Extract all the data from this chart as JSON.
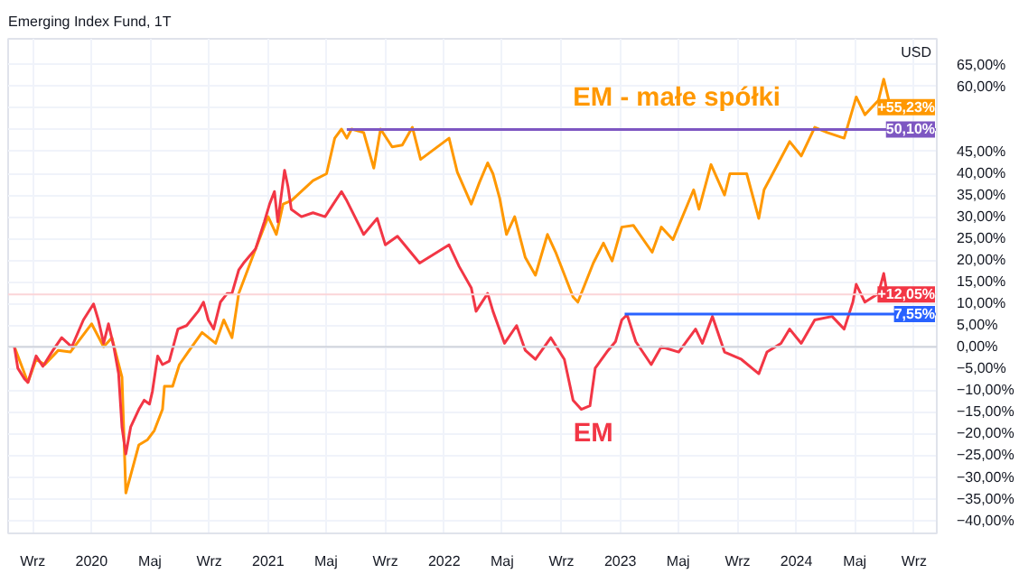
{
  "chart_data": {
    "type": "line",
    "title": "Emerging Index Fund, 1T",
    "ylabel": "USD",
    "xlim": [
      "2019-07-12",
      "2024-10-18"
    ],
    "ylim": [
      -43,
      71
    ],
    "xticks": [
      {
        "value": "2019-09-01",
        "label": "Wrz"
      },
      {
        "value": "2020-01-01",
        "label": "2020"
      },
      {
        "value": "2020-05-01",
        "label": "Maj"
      },
      {
        "value": "2020-09-01",
        "label": "Wrz"
      },
      {
        "value": "2021-01-01",
        "label": "2021"
      },
      {
        "value": "2021-05-01",
        "label": "Maj"
      },
      {
        "value": "2021-09-01",
        "label": "Wrz"
      },
      {
        "value": "2022-01-01",
        "label": "2022"
      },
      {
        "value": "2022-05-01",
        "label": "Maj"
      },
      {
        "value": "2022-09-01",
        "label": "Wrz"
      },
      {
        "value": "2023-01-01",
        "label": "2023"
      },
      {
        "value": "2023-05-01",
        "label": "Maj"
      },
      {
        "value": "2023-09-01",
        "label": "Wrz"
      },
      {
        "value": "2024-01-01",
        "label": "2024"
      },
      {
        "value": "2024-05-01",
        "label": "Maj"
      },
      {
        "value": "2024-09-01",
        "label": "Wrz"
      }
    ],
    "yticks": [
      {
        "value": -40,
        "label": "−40,00%"
      },
      {
        "value": -35,
        "label": "−35,00%"
      },
      {
        "value": -30,
        "label": "−30,00%"
      },
      {
        "value": -25,
        "label": "−25,00%"
      },
      {
        "value": -20,
        "label": "−20,00%"
      },
      {
        "value": -15,
        "label": "−15,00%"
      },
      {
        "value": -10,
        "label": "−10,00%"
      },
      {
        "value": -5,
        "label": "−5,00%"
      },
      {
        "value": 0,
        "label": "0,00%"
      },
      {
        "value": 5,
        "label": "5,00%"
      },
      {
        "value": 10,
        "label": "10,00%"
      },
      {
        "value": 15,
        "label": "15,00%"
      },
      {
        "value": 20,
        "label": "20,00%"
      },
      {
        "value": 25,
        "label": "25,00%"
      },
      {
        "value": 30,
        "label": "30,00%"
      },
      {
        "value": 35,
        "label": "35,00%"
      },
      {
        "value": 40,
        "label": "40,00%"
      },
      {
        "value": 45,
        "label": "45,00%"
      },
      {
        "value": 50,
        "label": null
      },
      {
        "value": 55,
        "label": null
      },
      {
        "value": 60,
        "label": "60,00%"
      },
      {
        "value": 65,
        "label": "65,00%"
      }
    ],
    "grid": true,
    "line_style": "solid",
    "ref_lines": [
      {
        "axis": "y",
        "value": 0,
        "color": "#d1d4dc"
      },
      {
        "axis": "y",
        "value": 12.05,
        "color": "#fbd5d8"
      }
    ],
    "series": [
      {
        "color": "#ff9800",
        "x": [
          "2019-07-25",
          "2019-08-22",
          "2019-09-08",
          "2019-09-26",
          "2019-10-24",
          "2019-11-18",
          "2020-01-01",
          "2020-01-26",
          "2020-02-12",
          "2020-03-04",
          "2020-03-12",
          "2020-03-22",
          "2020-04-08",
          "2020-04-26",
          "2020-05-10",
          "2020-05-27",
          "2020-05-31",
          "2020-06-17",
          "2020-07-01",
          "2020-07-19",
          "2020-08-17",
          "2020-09-14",
          "2020-10-01",
          "2020-10-18",
          "2020-11-01",
          "2020-12-06",
          "2021-01-01",
          "2021-01-18",
          "2021-02-01",
          "2021-02-18",
          "2021-04-04",
          "2021-05-02",
          "2021-05-19",
          "2021-06-02",
          "2021-06-13",
          "2021-06-23",
          "2021-07-18",
          "2021-08-08",
          "2021-08-22",
          "2021-09-15",
          "2021-10-06",
          "2021-10-27",
          "2021-11-13",
          "2022-01-11",
          "2022-01-28",
          "2022-02-26",
          "2022-03-15",
          "2022-04-01",
          "2022-04-12",
          "2022-04-26",
          "2022-05-10",
          "2022-05-27",
          "2022-06-18",
          "2022-07-09",
          "2022-08-03",
          "2022-08-20",
          "2022-09-25",
          "2022-10-05",
          "2022-11-06",
          "2022-11-27",
          "2022-12-15",
          "2023-01-04",
          "2023-01-28",
          "2023-03-08",
          "2023-03-27",
          "2023-04-20",
          "2023-06-02",
          "2023-06-13",
          "2023-07-08",
          "2023-08-05",
          "2023-08-16",
          "2023-09-20",
          "2023-10-15",
          "2023-10-26",
          "2023-11-19",
          "2023-12-18",
          "2024-01-11",
          "2024-02-08",
          "2024-03-05",
          "2024-04-09",
          "2024-05-04",
          "2024-05-22",
          "2024-06-19",
          "2024-06-30",
          "2024-07-14"
        ],
        "values": [
          0,
          -8.2,
          -2.9,
          -4.1,
          -0.8,
          -1.2,
          5.3,
          0,
          2.1,
          -7.0,
          -33.7,
          -29.6,
          -22.6,
          -21.4,
          -19.3,
          -14.4,
          -9.1,
          -9.1,
          -4.1,
          -1.2,
          3.3,
          0.8,
          6.2,
          2.1,
          12.3,
          22.6,
          30.0,
          25.9,
          32.9,
          33.7,
          38.3,
          39.9,
          48.1,
          50.2,
          48.1,
          50.2,
          49.4,
          41.2,
          50.2,
          46.1,
          46.5,
          50.6,
          43.2,
          48.1,
          40.3,
          32.9,
          37.9,
          42.4,
          39.9,
          34.2,
          25.9,
          30.0,
          20.6,
          16.5,
          25.9,
          21.8,
          11.5,
          10.3,
          19.3,
          23.9,
          19.8,
          27.6,
          28.0,
          21.8,
          27.6,
          24.7,
          36.2,
          31.7,
          42.0,
          35.0,
          39.9,
          39.9,
          29.6,
          36.2,
          41.2,
          47.3,
          44.0,
          50.6,
          49.4,
          48.1,
          57.6,
          53.5,
          56.8,
          61.7,
          55.23
        ]
      },
      {
        "color": "#f23645",
        "x": [
          "2019-07-25",
          "2019-08-01",
          "2019-08-15",
          "2019-08-22",
          "2019-09-08",
          "2019-09-22",
          "2019-10-13",
          "2019-10-31",
          "2019-11-21",
          "2019-12-15",
          "2020-01-05",
          "2020-01-15",
          "2020-01-26",
          "2020-02-05",
          "2020-02-16",
          "2020-02-26",
          "2020-03-04",
          "2020-03-12",
          "2020-03-22",
          "2020-04-08",
          "2020-04-19",
          "2020-04-30",
          "2020-05-06",
          "2020-05-17",
          "2020-05-27",
          "2020-06-10",
          "2020-06-28",
          "2020-07-16",
          "2020-08-09",
          "2020-08-20",
          "2020-08-30",
          "2020-09-10",
          "2020-09-24",
          "2020-10-08",
          "2020-10-18",
          "2020-11-01",
          "2020-11-11",
          "2020-12-06",
          "2020-12-24",
          "2021-01-04",
          "2021-01-14",
          "2021-01-21",
          "2021-02-04",
          "2021-02-11",
          "2021-02-18",
          "2021-03-11",
          "2021-04-04",
          "2021-04-29",
          "2021-05-16",
          "2021-06-02",
          "2021-06-13",
          "2021-07-18",
          "2021-08-15",
          "2021-09-01",
          "2021-09-26",
          "2021-11-11",
          "2022-01-11",
          "2022-02-01",
          "2022-02-26",
          "2022-03-08",
          "2022-04-01",
          "2022-04-12",
          "2022-05-06",
          "2022-05-31",
          "2022-06-18",
          "2022-07-09",
          "2022-08-10",
          "2022-09-07",
          "2022-09-25",
          "2022-10-12",
          "2022-10-30",
          "2022-11-10",
          "2022-12-04",
          "2022-12-22",
          "2023-01-04",
          "2023-01-15",
          "2023-02-02",
          "2023-03-06",
          "2023-03-27",
          "2023-05-02",
          "2023-06-06",
          "2023-06-20",
          "2023-07-11",
          "2023-08-05",
          "2023-09-09",
          "2023-10-15",
          "2023-11-01",
          "2023-11-30",
          "2023-12-18",
          "2024-01-11",
          "2024-02-08",
          "2024-03-15",
          "2024-04-09",
          "2024-04-27",
          "2024-05-04",
          "2024-05-22",
          "2024-06-19",
          "2024-06-30",
          "2024-07-07",
          "2024-07-14"
        ],
        "values": [
          0,
          -4.9,
          -7.4,
          -8.2,
          -2.1,
          -4.5,
          -0.8,
          2.1,
          0,
          6.2,
          9.9,
          6.2,
          0.8,
          5.3,
          0,
          -6.2,
          -18.5,
          -24.7,
          -18.5,
          -14.4,
          -12.3,
          -13.2,
          -10.3,
          -2.1,
          -4.1,
          -3.3,
          4.1,
          4.9,
          8.2,
          10.3,
          6.2,
          4.1,
          10.3,
          12.3,
          12.3,
          17.7,
          19.3,
          22.6,
          28.8,
          32.9,
          35.8,
          28.8,
          40.7,
          37.0,
          31.7,
          30.0,
          30.9,
          30.0,
          32.9,
          35.8,
          33.7,
          25.9,
          29.6,
          23.5,
          25.5,
          19.3,
          23.5,
          18.5,
          13.6,
          8.2,
          12.3,
          8.2,
          0.8,
          4.9,
          -0.8,
          -2.9,
          2.1,
          -2.9,
          -12.3,
          -14.4,
          -13.6,
          -4.9,
          -1.2,
          1.2,
          6.2,
          7.4,
          1.2,
          -4.1,
          0,
          -1.2,
          4.1,
          0.8,
          7.0,
          -1.2,
          -2.9,
          -6.2,
          -1.2,
          0.8,
          4.1,
          0.8,
          6.2,
          7.0,
          4.1,
          10.3,
          14.4,
          10.3,
          12.3,
          16.9,
          12.3,
          12.05
        ]
      },
      {
        "color": "#7e57c2",
        "x": [
          "2021-06-13",
          "2024-10-18"
        ],
        "values": [
          50.1,
          50.1
        ]
      },
      {
        "color": "#2962ff",
        "x": [
          "2023-01-10",
          "2024-10-18"
        ],
        "values": [
          7.55,
          7.55
        ]
      }
    ],
    "annotations": [
      "EM - małe spółki",
      "EM",
      {
        "text": "+55,23%",
        "x": "2024-07-14",
        "y": 55.23
      },
      {
        "text": "+12,05%",
        "x": "2024-07-14",
        "y": 12.05
      },
      {
        "text": "50,10%",
        "x": "2024-10-18",
        "y": 50.1
      },
      {
        "text": "7,55%",
        "x": "2024-10-18",
        "y": 7.55
      }
    ]
  }
}
